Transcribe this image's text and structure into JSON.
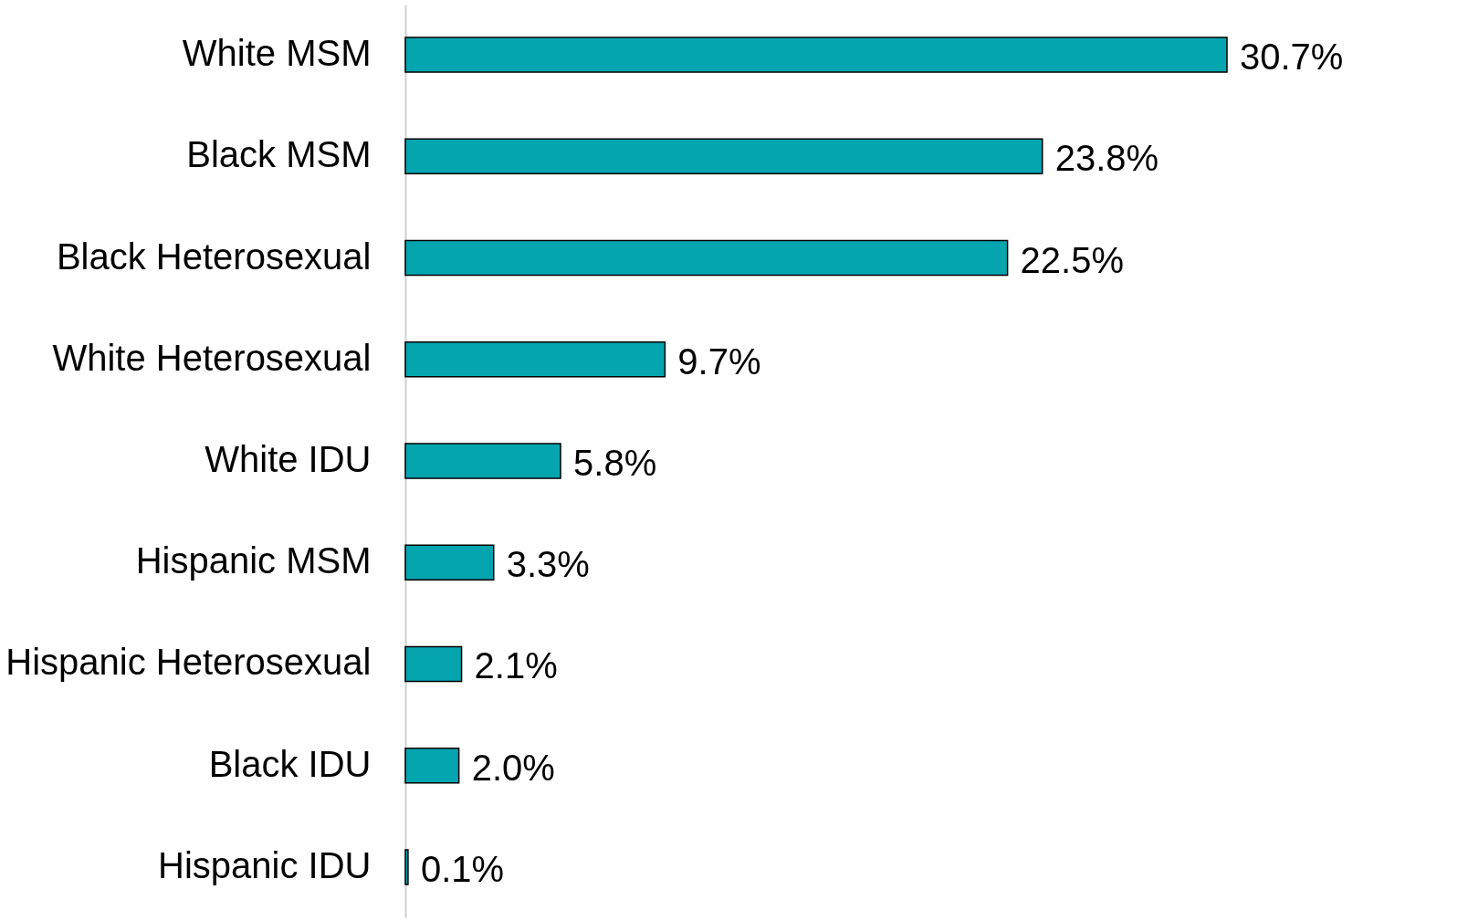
{
  "chart_data": {
    "type": "bar",
    "orientation": "horizontal",
    "categories": [
      "White MSM",
      "Black MSM",
      "Black Heterosexual",
      "White Heterosexual",
      "White IDU",
      "Hispanic MSM",
      "Hispanic Heterosexual",
      "Black IDU",
      "Hispanic IDU"
    ],
    "values": [
      30.7,
      23.8,
      22.5,
      9.7,
      5.8,
      3.3,
      2.1,
      2.0,
      0.1
    ],
    "value_labels": [
      "30.7%",
      "23.8%",
      "22.5%",
      "9.7%",
      "5.8%",
      "3.3%",
      "2.1%",
      "2.0%",
      "0.1%"
    ],
    "color": "#05a5b0",
    "grid": false
  }
}
